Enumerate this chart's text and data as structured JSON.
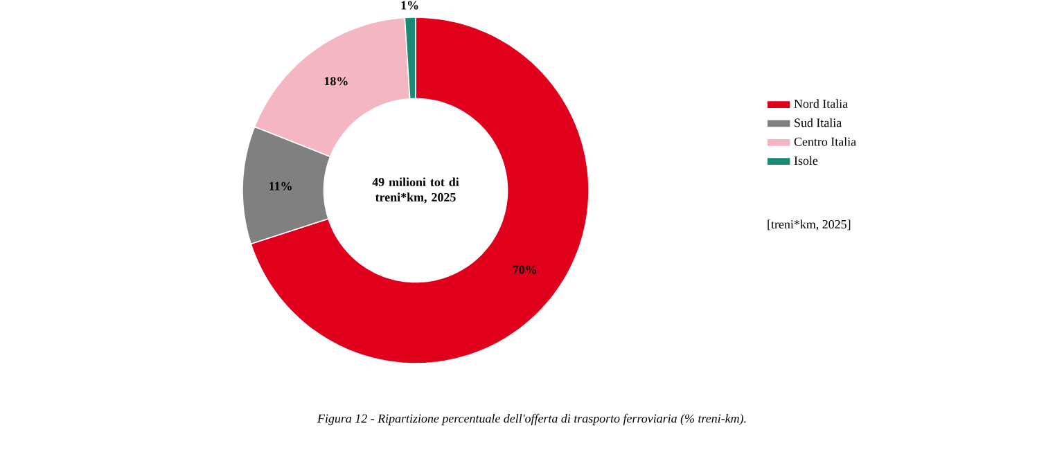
{
  "chart_data": {
    "type": "donut",
    "categories": [
      "Nord Italia",
      "Sud Italia",
      "Centro Italia",
      "Isole"
    ],
    "values": [
      70,
      11,
      18,
      1
    ],
    "colors": [
      "#e0001b",
      "#808080",
      "#f4b6c2",
      "#1a8a74"
    ],
    "value_labels": [
      "70%",
      "11%",
      "18%",
      "1%"
    ],
    "legend": "right",
    "annotations": [
      "49 milioni tot di treni*km, 2025",
      "[treni*km, 2025]",
      "Figura 12 - Ripartizione percentuale dell'offerta di trasporto ferroviaria (% treni-km)."
    ]
  }
}
